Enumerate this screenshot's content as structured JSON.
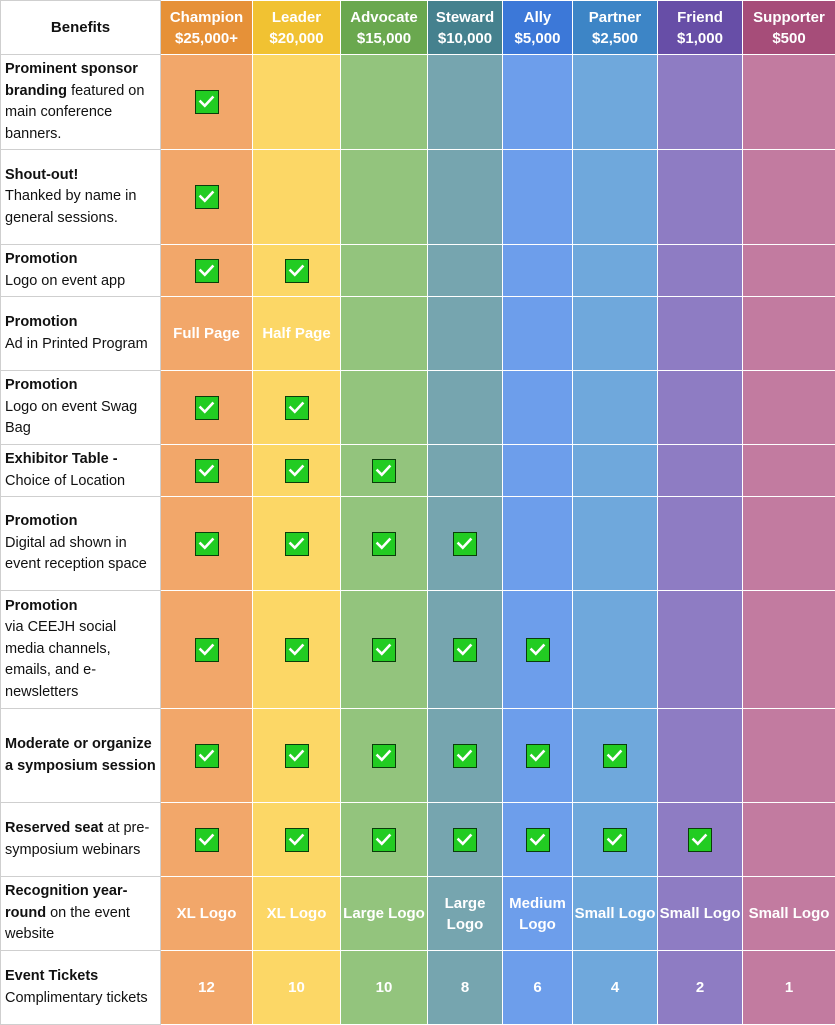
{
  "header": {
    "benefits_label": "Benefits",
    "tiers": [
      {
        "name": "Champion",
        "price": "$25,000+",
        "color": "#e69138"
      },
      {
        "name": "Leader",
        "price": "$20,000",
        "color": "#f1c232"
      },
      {
        "name": "Advocate",
        "price": "$15,000",
        "color": "#6aa84f"
      },
      {
        "name": "Steward",
        "price": "$10,000",
        "color": "#45818e"
      },
      {
        "name": "Ally",
        "price": "$5,000",
        "color": "#3c78d8"
      },
      {
        "name": "Partner",
        "price": "$2,500",
        "color": "#3d85c6"
      },
      {
        "name": "Friend",
        "price": "$1,000",
        "color": "#674ea7"
      },
      {
        "name": "Supporter",
        "price": "$500",
        "color": "#a64d79"
      }
    ]
  },
  "check_icon": "checkbox-checked-icon",
  "rows": [
    {
      "bold": "Prominent sponsor branding",
      "rest": "featured on main conference banners.",
      "cells": [
        "check",
        "",
        "",
        "",
        "",
        "",
        "",
        ""
      ]
    },
    {
      "bold": "Shout-out!",
      "rest": "Thanked by name in general sessions.",
      "cells": [
        "check",
        "",
        "",
        "",
        "",
        "",
        "",
        ""
      ]
    },
    {
      "bold": "Promotion",
      "rest": "Logo on event app",
      "cells": [
        "check",
        "check",
        "",
        "",
        "",
        "",
        "",
        ""
      ]
    },
    {
      "bold": "Promotion",
      "rest": "Ad in Printed Program",
      "cells": [
        "Full Page",
        "Half Page",
        "",
        "",
        "",
        "",
        "",
        ""
      ]
    },
    {
      "bold": "Promotion",
      "rest": "Logo on event Swag Bag",
      "cells": [
        "check",
        "check",
        "",
        "",
        "",
        "",
        "",
        ""
      ]
    },
    {
      "bold": "Exhibitor Table -",
      "rest": "Choice of Location",
      "cells": [
        "check",
        "check",
        "check",
        "",
        "",
        "",
        "",
        ""
      ]
    },
    {
      "bold": "Promotion",
      "rest": "Digital ad shown in event reception space",
      "cells": [
        "check",
        "check",
        "check",
        "check",
        "",
        "",
        "",
        ""
      ]
    },
    {
      "bold": "Promotion",
      "rest": "via CEEJH social media channels, emails, and e-newsletters",
      "cells": [
        "check",
        "check",
        "check",
        "check",
        "check",
        "",
        "",
        ""
      ]
    },
    {
      "bold": "Moderate or organize a symposium session",
      "rest": "",
      "cells": [
        "check",
        "check",
        "check",
        "check",
        "check",
        "check",
        "",
        ""
      ]
    },
    {
      "bold": "Reserved seat",
      "rest": "at pre-symposium webinars",
      "cells": [
        "check",
        "check",
        "check",
        "check",
        "check",
        "check",
        "check",
        ""
      ]
    },
    {
      "bold": "Recognition year-round",
      "rest": "on the event website",
      "cells": [
        "XL Logo",
        "XL Logo",
        "Large Logo",
        "Large Logo",
        "Medium Logo",
        "Small Logo",
        "Small Logo",
        "Small Logo"
      ]
    },
    {
      "bold": "Event Tickets",
      "rest": "Complimentary tickets",
      "cells": [
        "12",
        "10",
        "10",
        "8",
        "6",
        "4",
        "2",
        "1"
      ]
    }
  ]
}
